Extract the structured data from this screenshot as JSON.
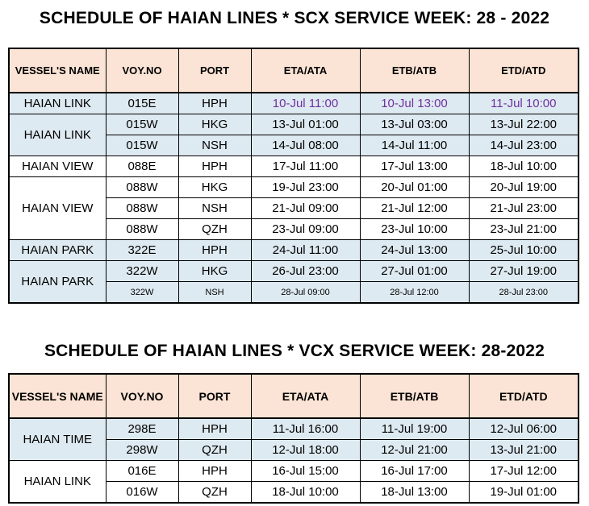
{
  "scx": {
    "title": "SCHEDULE OF HAIAN LINES * SCX SERVICE WEEK: 28 - 2022",
    "headers": [
      "VESSEL'S NAME",
      "VOY.NO",
      "PORT",
      "ETA/ATA",
      "ETB/ATB",
      "ETD/ATD"
    ],
    "groups": [
      {
        "vessel": "HAIAN LINK",
        "rows": [
          {
            "voy": "015E",
            "port": "HPH",
            "eta": "10-Jul 11:00",
            "etb": "10-Jul 13:00",
            "etd": "11-Jul 10:00"
          }
        ]
      },
      {
        "vessel": "HAIAN LINK",
        "rows": [
          {
            "voy": "015W",
            "port": "HKG",
            "eta": "13-Jul 01:00",
            "etb": "13-Jul 03:00",
            "etd": "13-Jul 22:00"
          },
          {
            "voy": "015W",
            "port": "NSH",
            "eta": "14-Jul 08:00",
            "etb": "14-Jul 11:00",
            "etd": "14-Jul 23:00"
          }
        ]
      },
      {
        "vessel": "HAIAN VIEW",
        "rows": [
          {
            "voy": "088E",
            "port": "HPH",
            "eta": "17-Jul 11:00",
            "etb": "17-Jul 13:00",
            "etd": "18-Jul 10:00"
          }
        ]
      },
      {
        "vessel": "HAIAN VIEW",
        "rows": [
          {
            "voy": "088W",
            "port": "HKG",
            "eta": "19-Jul 23:00",
            "etb": "20-Jul 01:00",
            "etd": "20-Jul 19:00"
          },
          {
            "voy": "088W",
            "port": "NSH",
            "eta": "21-Jul 09:00",
            "etb": "21-Jul 12:00",
            "etd": "21-Jul 23:00"
          },
          {
            "voy": "088W",
            "port": "QZH",
            "eta": "23-Jul 09:00",
            "etb": "23-Jul 10:00",
            "etd": "23-Jul 21:00"
          }
        ]
      },
      {
        "vessel": "HAIAN PARK",
        "rows": [
          {
            "voy": "322E",
            "port": "HPH",
            "eta": "24-Jul 11:00",
            "etb": "24-Jul 13:00",
            "etd": "25-Jul 10:00"
          }
        ]
      },
      {
        "vessel": "HAIAN PARK",
        "rows": [
          {
            "voy": "322W",
            "port": "HKG",
            "eta": "26-Jul 23:00",
            "etb": "27-Jul 01:00",
            "etd": "27-Jul 19:00"
          },
          {
            "voy": "322W",
            "port": "NSH",
            "eta": "28-Jul 09:00",
            "etb": "28-Jul 12:00",
            "etd": "28-Jul 23:00"
          }
        ]
      }
    ]
  },
  "vcx": {
    "title": "SCHEDULE OF HAIAN LINES * VCX SERVICE WEEK: 28-2022",
    "headers": [
      "VESSEL'S NAME",
      "VOY.NO",
      "PORT",
      "ETA/ATA",
      "ETB/ATB",
      "ETD/ATD"
    ],
    "groups": [
      {
        "vessel": "HAIAN TIME",
        "rows": [
          {
            "voy": "298E",
            "port": "HPH",
            "eta": "11-Jul 16:00",
            "etb": "11-Jul 19:00",
            "etd": "12-Jul 06:00"
          },
          {
            "voy": "298W",
            "port": "QZH",
            "eta": "12-Jul 18:00",
            "etb": "12-Jul 21:00",
            "etd": "13-Jul 21:00"
          }
        ]
      },
      {
        "vessel": "HAIAN LINK",
        "rows": [
          {
            "voy": "016E",
            "port": "HPH",
            "eta": "16-Jul 15:00",
            "etb": "16-Jul 17:00",
            "etd": "17-Jul 12:00"
          },
          {
            "voy": "016W",
            "port": "QZH",
            "eta": "18-Jul 10:00",
            "etb": "18-Jul 13:00",
            "etd": "19-Jul 01:00"
          }
        ]
      }
    ]
  },
  "colors": {
    "header_bg": "#fbe4d5",
    "row_blue": "#deeaf1",
    "highlight_text": "#7030a0"
  }
}
